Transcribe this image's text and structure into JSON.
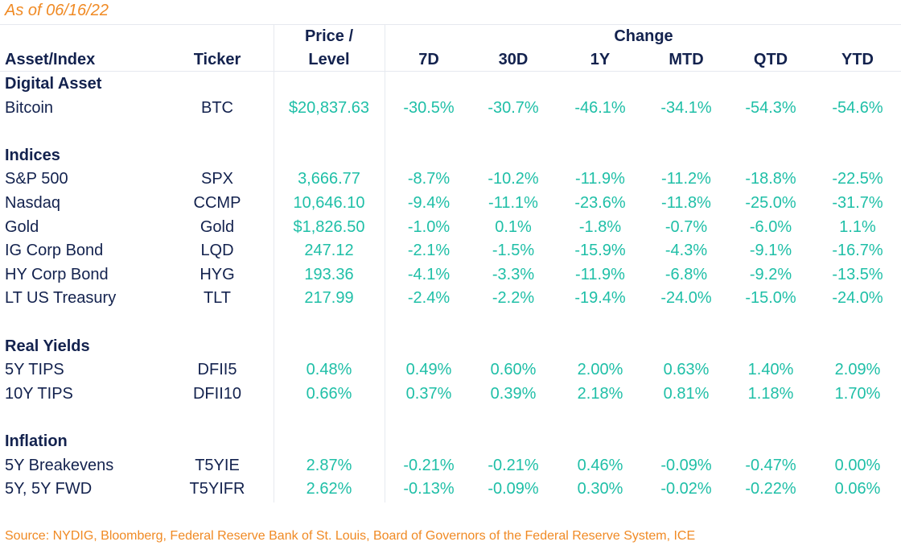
{
  "as_of": "As of 06/16/22",
  "headers": {
    "asset": "Asset/Index",
    "ticker": "Ticker",
    "price_line1": "Price /",
    "price_line2": "Level",
    "change": "Change",
    "periods": [
      "7D",
      "30D",
      "1Y",
      "MTD",
      "QTD",
      "YTD"
    ]
  },
  "sections": [
    {
      "title": "Digital Asset",
      "rows": [
        {
          "name": "Bitcoin",
          "ticker": "BTC",
          "price": "$20,837.63",
          "changes": [
            "-30.5%",
            "-30.7%",
            "-46.1%",
            "-34.1%",
            "-54.3%",
            "-54.6%"
          ]
        }
      ]
    },
    {
      "title": "Indices",
      "rows": [
        {
          "name": "S&P 500",
          "ticker": "SPX",
          "price": "3,666.77",
          "changes": [
            "-8.7%",
            "-10.2%",
            "-11.9%",
            "-11.2%",
            "-18.8%",
            "-22.5%"
          ]
        },
        {
          "name": "Nasdaq",
          "ticker": "CCMP",
          "price": "10,646.10",
          "changes": [
            "-9.4%",
            "-11.1%",
            "-23.6%",
            "-11.8%",
            "-25.0%",
            "-31.7%"
          ]
        },
        {
          "name": "Gold",
          "ticker": "Gold",
          "price": "$1,826.50",
          "changes": [
            "-1.0%",
            "0.1%",
            "-1.8%",
            "-0.7%",
            "-6.0%",
            "1.1%"
          ]
        },
        {
          "name": "IG Corp Bond",
          "ticker": "LQD",
          "price": "247.12",
          "changes": [
            "-2.1%",
            "-1.5%",
            "-15.9%",
            "-4.3%",
            "-9.1%",
            "-16.7%"
          ]
        },
        {
          "name": "HY Corp Bond",
          "ticker": "HYG",
          "price": "193.36",
          "changes": [
            "-4.1%",
            "-3.3%",
            "-11.9%",
            "-6.8%",
            "-9.2%",
            "-13.5%"
          ]
        },
        {
          "name": "LT US Treasury",
          "ticker": "TLT",
          "price": "217.99",
          "changes": [
            "-2.4%",
            "-2.2%",
            "-19.4%",
            "-24.0%",
            "-15.0%",
            "-24.0%"
          ]
        }
      ]
    },
    {
      "title": "Real Yields",
      "rows": [
        {
          "name": "5Y TIPS",
          "ticker": "DFII5",
          "price": "0.48%",
          "changes": [
            "0.49%",
            "0.60%",
            "2.00%",
            "0.63%",
            "1.40%",
            "2.09%"
          ]
        },
        {
          "name": "10Y TIPS",
          "ticker": "DFII10",
          "price": "0.66%",
          "changes": [
            "0.37%",
            "0.39%",
            "2.18%",
            "0.81%",
            "1.18%",
            "1.70%"
          ]
        }
      ]
    },
    {
      "title": "Inflation",
      "rows": [
        {
          "name": "5Y Breakevens",
          "ticker": "T5YIE",
          "price": "2.87%",
          "changes": [
            "-0.21%",
            "-0.21%",
            "0.46%",
            "-0.09%",
            "-0.47%",
            "0.00%"
          ]
        },
        {
          "name": "5Y, 5Y FWD",
          "ticker": "T5YIFR",
          "price": "2.62%",
          "changes": [
            "-0.13%",
            "-0.09%",
            "0.30%",
            "-0.02%",
            "-0.22%",
            "0.06%"
          ]
        }
      ]
    }
  ],
  "source": "Source: NYDIG, Bloomberg, Federal Reserve Bank of St. Louis, Board of Governors of the Federal Reserve System, ICE"
}
